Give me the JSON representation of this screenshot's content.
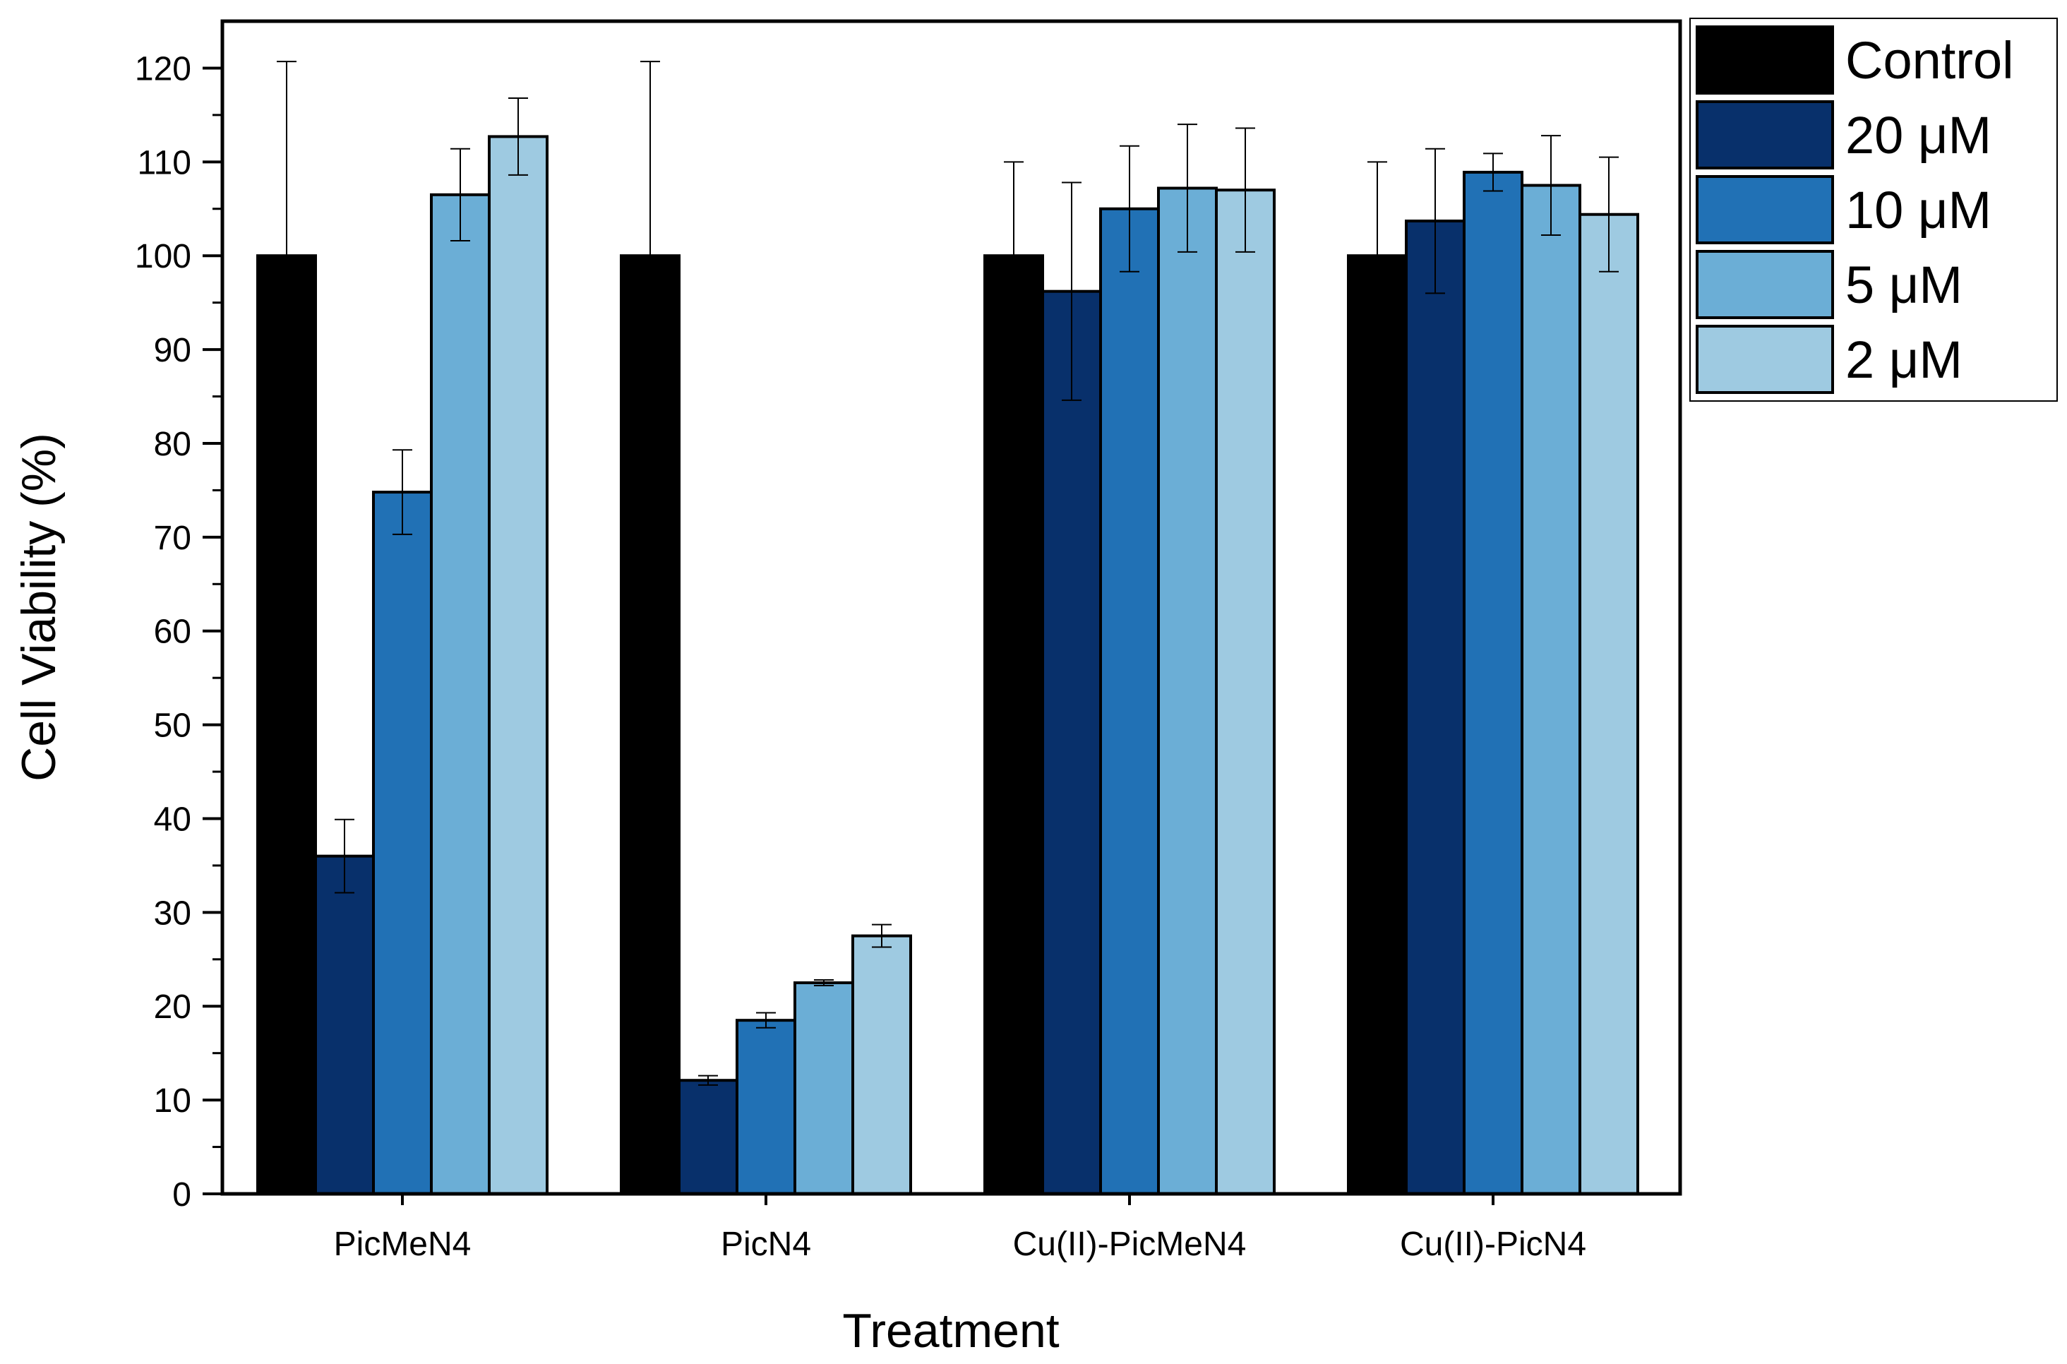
{
  "chart_data": {
    "type": "bar",
    "title": "",
    "xlabel": "Treatment",
    "ylabel": "Cell Viability (%)",
    "ylim": [
      0,
      125
    ],
    "yticks": [
      0,
      10,
      20,
      30,
      40,
      50,
      60,
      70,
      80,
      90,
      100,
      110,
      120
    ],
    "grid": false,
    "legend_position": "outside-top-right",
    "categories": [
      "PicMeN4",
      "PicN4",
      "Cu(II)-PicMeN4",
      "Cu(II)-PicN4"
    ],
    "series": [
      {
        "name": "Control",
        "color": "#000000",
        "values": [
          100,
          100,
          100,
          100
        ],
        "errors": [
          20.7,
          20.7,
          10.0,
          10.0
        ]
      },
      {
        "name": "20 μM",
        "color": "#08306b",
        "values": [
          36.0,
          12.1,
          96.2,
          103.7
        ],
        "errors": [
          3.9,
          0.5,
          11.6,
          7.7
        ]
      },
      {
        "name": "10 μM",
        "color": "#2171b5",
        "values": [
          74.8,
          18.5,
          105.0,
          108.9
        ],
        "errors": [
          4.5,
          0.8,
          6.7,
          2.0
        ]
      },
      {
        "name": "5 μM",
        "color": "#6baed6",
        "values": [
          106.5,
          22.5,
          107.2,
          107.5
        ],
        "errors": [
          4.9,
          0.3,
          6.8,
          5.3
        ]
      },
      {
        "name": "2 μM",
        "color": "#9ecae1",
        "values": [
          112.7,
          27.5,
          107.0,
          104.4
        ],
        "errors": [
          4.1,
          1.2,
          6.6,
          6.1
        ]
      }
    ]
  }
}
